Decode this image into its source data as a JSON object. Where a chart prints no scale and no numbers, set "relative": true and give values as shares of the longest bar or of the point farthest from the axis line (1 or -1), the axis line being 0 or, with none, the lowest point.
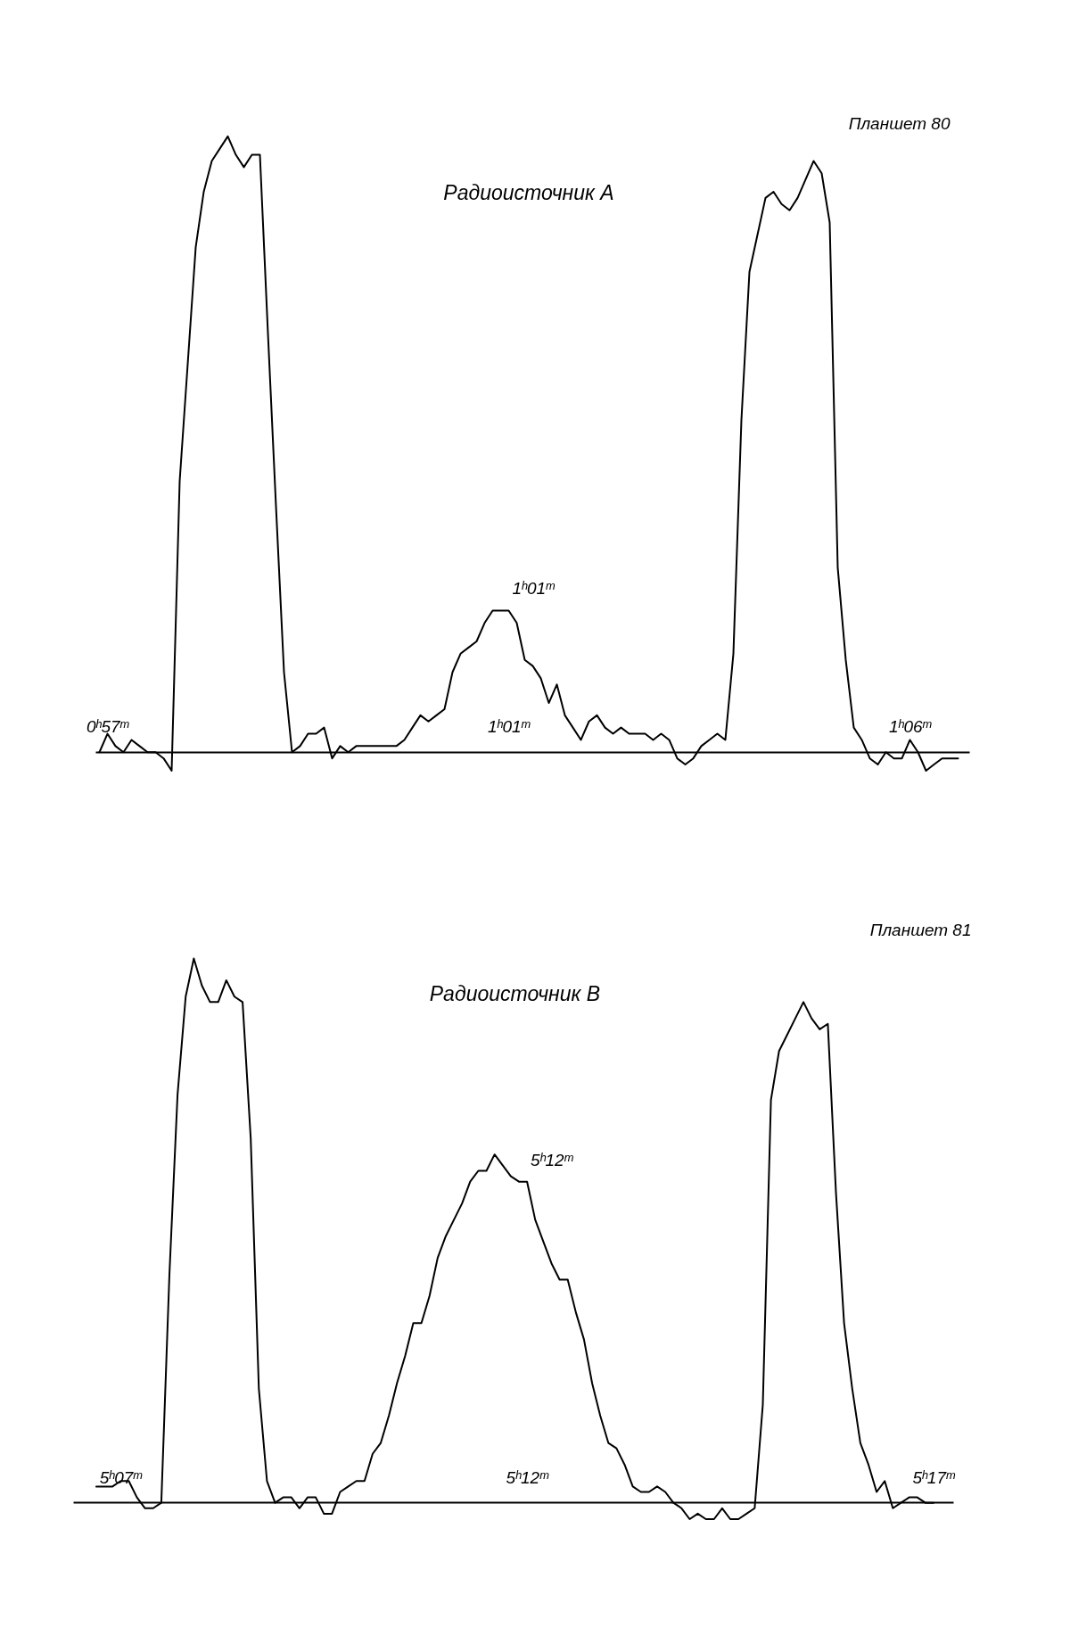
{
  "chart_data": [
    {
      "type": "line",
      "title": "Радиоисточник A",
      "subtitle": "Планшет 80",
      "relative": true,
      "color": "#000000",
      "tick_labels": "x",
      "categories": [
        null,
        "0ʰ57ᵐ",
        null,
        null,
        null,
        null,
        null,
        null,
        null,
        null,
        null,
        null,
        null,
        null,
        null,
        null,
        null,
        null,
        null,
        null,
        null,
        null,
        null,
        null,
        null,
        null,
        null,
        null,
        null,
        null,
        null,
        null,
        null,
        null,
        null,
        null,
        null,
        null,
        null,
        null,
        null,
        null,
        null,
        null,
        null,
        null,
        null,
        null,
        null,
        null,
        null,
        "1ʰ01ᵐ",
        null,
        null,
        null,
        null,
        null,
        null,
        null,
        null,
        null,
        null,
        null,
        null,
        null,
        null,
        null,
        null,
        null,
        null,
        null,
        null,
        null,
        null,
        null,
        null,
        null,
        null,
        null,
        null,
        null,
        null,
        null,
        null,
        null,
        null,
        null,
        null,
        null,
        null,
        null,
        null,
        null,
        null,
        null,
        null,
        null,
        null,
        null,
        null,
        null,
        "1ʰ06ᵐ",
        null,
        null,
        null,
        null,
        null,
        null
      ],
      "annotations": [
        {
          "text": "1ʰ01ᵐ",
          "x": "1ʰ01ᵐ",
          "y": 0.23
        }
      ],
      "values": [
        0.0,
        0.03,
        0.01,
        0.0,
        0.02,
        0.01,
        0.0,
        0.0,
        -0.01,
        -0.03,
        0.44,
        0.63,
        0.82,
        0.91,
        0.96,
        0.98,
        1.0,
        0.97,
        0.95,
        0.97,
        0.97,
        0.68,
        0.4,
        0.13,
        0.0,
        0.01,
        0.03,
        0.03,
        0.04,
        -0.01,
        0.01,
        0.0,
        0.01,
        0.01,
        0.01,
        0.01,
        0.01,
        0.01,
        0.02,
        0.04,
        0.06,
        0.05,
        0.06,
        0.07,
        0.13,
        0.16,
        0.17,
        0.18,
        0.21,
        0.23,
        0.23,
        0.23,
        0.21,
        0.15,
        0.14,
        0.12,
        0.08,
        0.11,
        0.06,
        0.04,
        0.02,
        0.05,
        0.06,
        0.04,
        0.03,
        0.04,
        0.03,
        0.03,
        0.03,
        0.02,
        0.03,
        0.02,
        -0.01,
        -0.02,
        -0.01,
        0.01,
        0.02,
        0.03,
        0.02,
        0.16,
        0.54,
        0.78,
        0.84,
        0.9,
        0.91,
        0.89,
        0.88,
        0.9,
        0.93,
        0.96,
        0.94,
        0.86,
        0.3,
        0.15,
        0.04,
        0.02,
        -0.01,
        -0.02,
        0.0,
        -0.01,
        -0.01,
        0.02,
        0.0,
        -0.03,
        -0.02,
        -0.01,
        -0.01,
        -0.01
      ]
    },
    {
      "type": "line",
      "title": "Радиоисточник B",
      "subtitle": "Планшет 81",
      "relative": true,
      "color": "#000000",
      "tick_labels": "x",
      "categories": [
        null,
        null,
        null,
        "5ʰ07ᵐ",
        null,
        null,
        null,
        null,
        null,
        null,
        null,
        null,
        null,
        null,
        null,
        null,
        null,
        null,
        null,
        null,
        null,
        null,
        null,
        null,
        null,
        null,
        null,
        null,
        null,
        null,
        null,
        null,
        null,
        null,
        null,
        null,
        null,
        null,
        null,
        null,
        null,
        null,
        null,
        null,
        null,
        null,
        null,
        null,
        null,
        null,
        null,
        null,
        null,
        "5ʰ12ᵐ",
        null,
        null,
        null,
        null,
        null,
        null,
        null,
        null,
        null,
        null,
        null,
        null,
        null,
        null,
        null,
        null,
        null,
        null,
        null,
        null,
        null,
        null,
        null,
        null,
        null,
        null,
        null,
        null,
        null,
        null,
        null,
        null,
        null,
        null,
        null,
        null,
        null,
        null,
        null,
        null,
        null,
        null,
        null,
        null,
        null,
        null,
        null,
        null,
        null,
        "5ʰ17ᵐ"
      ],
      "annotations": [
        {
          "text": "5ʰ12ᵐ",
          "x": "5ʰ12ᵐ",
          "y": 0.59
        }
      ],
      "values": [
        0.03,
        0.03,
        0.03,
        0.04,
        0.04,
        0.01,
        -0.01,
        -0.01,
        0.0,
        0.42,
        0.75,
        0.93,
        1.0,
        0.95,
        0.92,
        0.92,
        0.96,
        0.93,
        0.92,
        0.67,
        0.21,
        0.04,
        0.0,
        0.01,
        0.01,
        -0.01,
        0.01,
        0.01,
        -0.02,
        -0.02,
        0.02,
        0.03,
        0.04,
        0.04,
        0.09,
        0.11,
        0.16,
        0.22,
        0.27,
        0.33,
        0.33,
        0.38,
        0.45,
        0.49,
        0.52,
        0.55,
        0.59,
        0.61,
        0.61,
        0.64,
        0.62,
        0.6,
        0.59,
        0.59,
        0.52,
        0.48,
        0.44,
        0.41,
        0.41,
        0.35,
        0.3,
        0.22,
        0.16,
        0.11,
        0.1,
        0.07,
        0.03,
        0.02,
        0.02,
        0.03,
        0.02,
        0.0,
        -0.01,
        -0.03,
        -0.02,
        -0.03,
        -0.03,
        -0.01,
        -0.03,
        -0.03,
        -0.02,
        -0.01,
        0.18,
        0.74,
        0.83,
        0.86,
        0.89,
        0.92,
        0.89,
        0.87,
        0.88,
        0.57,
        0.33,
        0.21,
        0.11,
        0.07,
        0.02,
        0.04,
        -0.01,
        0.0,
        0.01,
        0.01,
        0.0,
        0.0
      ]
    }
  ]
}
